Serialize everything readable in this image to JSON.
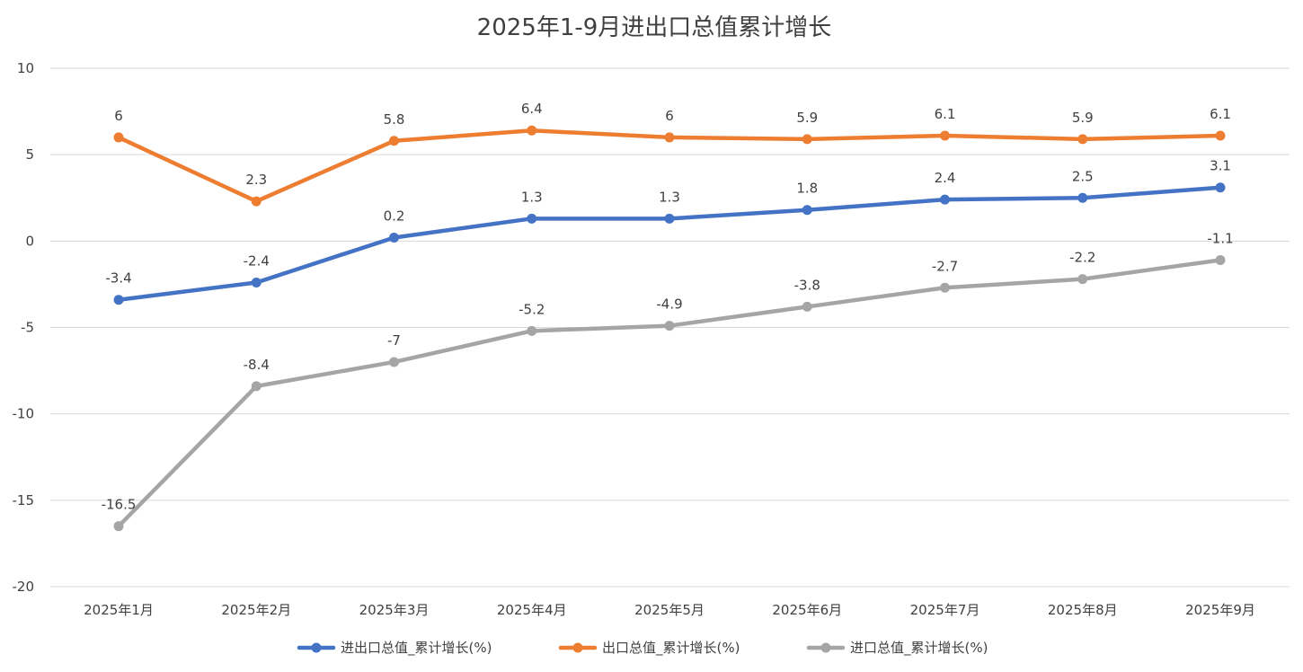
{
  "chart_data": {
    "type": "line",
    "title": "2025年1-9月进出口总值累计增长",
    "xlabel": "",
    "ylabel": "",
    "categories": [
      "2025年1月",
      "2025年2月",
      "2025年3月",
      "2025年4月",
      "2025年5月",
      "2025年6月",
      "2025年7月",
      "2025年8月",
      "2025年9月"
    ],
    "ylim": [
      -20,
      10
    ],
    "yticks": [
      10,
      5,
      0,
      -5,
      -10,
      -15,
      -20
    ],
    "grid": true,
    "legend_position": "bottom",
    "series": [
      {
        "name": "进出口总值_累计增长(%)",
        "color": "#4472C4",
        "values": [
          -3.4,
          -2.4,
          0.2,
          1.3,
          1.3,
          1.8,
          2.4,
          2.5,
          3.1
        ],
        "labels": [
          "-3.4",
          "-2.4",
          "0.2",
          "1.3",
          "1.3",
          "1.8",
          "2.4",
          "2.5",
          "3.1"
        ]
      },
      {
        "name": "出口总值_累计增长(%)",
        "color": "#ED7D31",
        "values": [
          6,
          2.3,
          5.8,
          6.4,
          6,
          5.9,
          6.1,
          5.9,
          6.1
        ],
        "labels": [
          "6",
          "2.3",
          "5.8",
          "6.4",
          "6",
          "5.9",
          "6.1",
          "5.9",
          "6.1"
        ]
      },
      {
        "name": "进口总值_累计增长(%)",
        "color": "#A5A5A5",
        "values": [
          -16.5,
          -8.4,
          -7,
          -5.2,
          -4.9,
          -3.8,
          -2.7,
          -2.2,
          -1.1
        ],
        "labels": [
          "-16.5",
          "-8.4",
          "-7",
          "-5.2",
          "-4.9",
          "-3.8",
          "-2.7",
          "-2.2",
          "-1.1"
        ]
      }
    ]
  }
}
